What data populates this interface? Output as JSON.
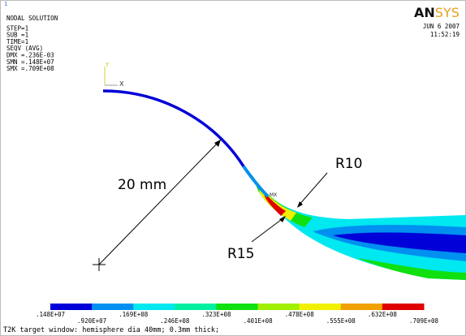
{
  "window_number": "1",
  "info": [
    "NODAL SOLUTION",
    "STEP=1",
    "SUB =1",
    "TIME=1",
    "SEQV     (AVG)",
    "DMX =.236E-03",
    "SMN =.148E+07",
    "SMX =.709E+08"
  ],
  "logo": {
    "main": "AN",
    "accent": "SYS"
  },
  "date": "JUN  6 2007",
  "time": "11:52:19",
  "triad": {
    "y": "Y",
    "x": "X"
  },
  "max_marker": "MX",
  "annotations": {
    "radius_big": "20 mm",
    "r10": "R10",
    "r15": "R15"
  },
  "legend": {
    "colors": [
      "#0000d8",
      "#0090f0",
      "#00e8f0",
      "#00f0a0",
      "#10e010",
      "#a0f000",
      "#f0f000",
      "#f0a000",
      "#e00000"
    ],
    "labels_top": [
      ".148E+07",
      ".169E+08",
      ".323E+08",
      ".478E+08",
      ".632E+08"
    ],
    "labels_bottom": [
      ".920E+07",
      ".246E+08",
      ".401E+08",
      ".555E+08",
      ".709E+08"
    ]
  },
  "footer": "T2K target window: hemisphere dia 40mm; 0.3mm thick;"
}
